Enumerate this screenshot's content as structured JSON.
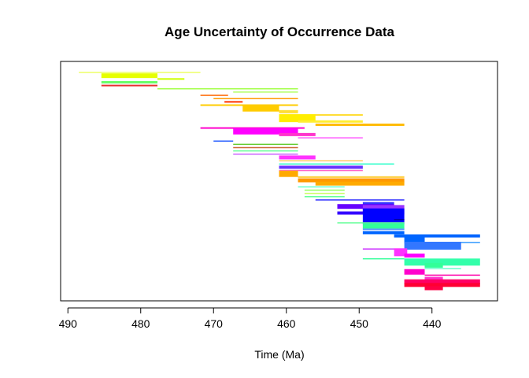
{
  "chart_data": {
    "type": "range-bar",
    "title": "Age Uncertainty of Occurrence Data",
    "xlabel": "Time (Ma)",
    "ylabel": "",
    "xlim": [
      491,
      431
    ],
    "x_reversed": true,
    "xticks": [
      490,
      480,
      470,
      460,
      450,
      440
    ],
    "xtick_labels": [
      "490",
      "480",
      "470",
      "460",
      "450",
      "440"
    ],
    "colors": [
      "#e6ff00",
      "#ccff33",
      "#a6ff4d",
      "#66ff66",
      "#33ff99",
      "#00ffcc",
      "#33ccff",
      "#3399ff",
      "#0066ff",
      "#0033ff",
      "#0000ff",
      "#3300ff",
      "#6600ff",
      "#9933ff",
      "#cc33ff",
      "#ff00ff",
      "#ff33cc",
      "#ff0099",
      "#ff0066",
      "#ff0033",
      "#ff9900",
      "#ffcc00",
      "#ffdd33",
      "#ff6600",
      "#ff3300",
      "#ff7700"
    ],
    "ranges": [
      {
        "start": 488.5,
        "end": 471.8,
        "color": "#eeff66",
        "width": 1.5
      },
      {
        "start": 485.4,
        "end": 477.7,
        "color": "#e6ff00",
        "width": 6
      },
      {
        "start": 477.7,
        "end": 474.0,
        "color": "#ccff00",
        "width": 2
      },
      {
        "start": 485.4,
        "end": 477.7,
        "color": "#66ff66",
        "width": 3
      },
      {
        "start": 485.4,
        "end": 477.7,
        "color": "#e83030",
        "width": 2
      },
      {
        "start": 477.7,
        "end": 458.4,
        "color": "#a6ff4d",
        "width": 1.5
      },
      {
        "start": 467.3,
        "end": 458.4,
        "color": "#b3ff66",
        "width": 1.5
      },
      {
        "start": 471.8,
        "end": 468.0,
        "color": "#ff6600",
        "width": 1.5
      },
      {
        "start": 470.0,
        "end": 458.4,
        "color": "#ff9900",
        "width": 1.5
      },
      {
        "start": 468.5,
        "end": 466.0,
        "color": "#ff3300",
        "width": 2
      },
      {
        "start": 471.8,
        "end": 458.4,
        "color": "#ffcc00",
        "width": 2
      },
      {
        "start": 466.0,
        "end": 461.0,
        "color": "#ffcc00",
        "width": 8
      },
      {
        "start": 461.0,
        "end": 458.4,
        "color": "#ffdd33",
        "width": 4
      },
      {
        "start": 461.0,
        "end": 449.5,
        "color": "#ffdd33",
        "width": 2
      },
      {
        "start": 461.0,
        "end": 456.0,
        "color": "#ffee00",
        "width": 10
      },
      {
        "start": 458.4,
        "end": 449.5,
        "color": "#ffee33",
        "width": 3
      },
      {
        "start": 456.0,
        "end": 443.8,
        "color": "#ffbb00",
        "width": 3
      },
      {
        "start": 471.8,
        "end": 457.5,
        "color": "#ff00cc",
        "width": 2
      },
      {
        "start": 467.3,
        "end": 458.4,
        "color": "#ff00ff",
        "width": 8
      },
      {
        "start": 461.0,
        "end": 456.0,
        "color": "#ff33cc",
        "width": 4
      },
      {
        "start": 458.4,
        "end": 449.5,
        "color": "#ff66ff",
        "width": 1.5
      },
      {
        "start": 470.0,
        "end": 467.3,
        "color": "#3366ff",
        "width": 1.5
      },
      {
        "start": 467.3,
        "end": 458.4,
        "color": "#66cc33",
        "width": 1.5
      },
      {
        "start": 467.3,
        "end": 458.4,
        "color": "#cc6633",
        "width": 1.5
      },
      {
        "start": 467.3,
        "end": 458.4,
        "color": "#66ff99",
        "width": 1.5
      },
      {
        "start": 467.3,
        "end": 458.4,
        "color": "#cc66ff",
        "width": 1.5
      },
      {
        "start": 461.0,
        "end": 456.0,
        "color": "#ff33ff",
        "width": 5
      },
      {
        "start": 461.0,
        "end": 449.5,
        "color": "#ffcc66",
        "width": 1.5
      },
      {
        "start": 461.0,
        "end": 445.2,
        "color": "#33ffcc",
        "width": 1.5
      },
      {
        "start": 461.0,
        "end": 449.5,
        "color": "#6633ff",
        "width": 4
      },
      {
        "start": 461.0,
        "end": 449.5,
        "color": "#ff66cc",
        "width": 1.5
      },
      {
        "start": 461.0,
        "end": 458.4,
        "color": "#ffaa00",
        "width": 8
      },
      {
        "start": 458.4,
        "end": 443.8,
        "color": "#ffcc33",
        "width": 2
      },
      {
        "start": 458.4,
        "end": 443.8,
        "color": "#ff9900",
        "width": 5
      },
      {
        "start": 456.0,
        "end": 443.8,
        "color": "#ffaa00",
        "width": 5
      },
      {
        "start": 458.4,
        "end": 452.0,
        "color": "#66ffcc",
        "width": 1.5
      },
      {
        "start": 457.5,
        "end": 452.0,
        "color": "#99ff66",
        "width": 1.5
      },
      {
        "start": 457.5,
        "end": 452.0,
        "color": "#ccff66",
        "width": 1.5
      },
      {
        "start": 457.5,
        "end": 452.0,
        "color": "#66ff99",
        "width": 1.5
      },
      {
        "start": 456.0,
        "end": 443.8,
        "color": "#3333ff",
        "width": 1.5
      },
      {
        "start": 449.5,
        "end": 445.2,
        "color": "#3333ff",
        "width": 3
      },
      {
        "start": 453.0,
        "end": 445.2,
        "color": "#6600ff",
        "width": 6
      },
      {
        "start": 449.5,
        "end": 443.8,
        "color": "#9933ff",
        "width": 12
      },
      {
        "start": 453.0,
        "end": 445.2,
        "color": "#3300ff",
        "width": 4
      },
      {
        "start": 449.5,
        "end": 443.8,
        "color": "#0000ff",
        "width": 20
      },
      {
        "start": 445.2,
        "end": 443.8,
        "color": "#000099",
        "width": 1.5
      },
      {
        "start": 453.0,
        "end": 443.8,
        "color": "#66ff99",
        "width": 1.5
      },
      {
        "start": 449.5,
        "end": 443.8,
        "color": "#33ff99",
        "width": 7
      },
      {
        "start": 449.5,
        "end": 443.8,
        "color": "#6699ff",
        "width": 2
      },
      {
        "start": 449.5,
        "end": 443.8,
        "color": "#0066ff",
        "width": 4
      },
      {
        "start": 445.2,
        "end": 433.4,
        "color": "#0066ff",
        "width": 4
      },
      {
        "start": 443.8,
        "end": 441.0,
        "color": "#0066ff",
        "width": 10
      },
      {
        "start": 441.0,
        "end": 433.4,
        "color": "#3399ff",
        "width": 1.5
      },
      {
        "start": 443.8,
        "end": 436.0,
        "color": "#3377ff",
        "width": 10
      },
      {
        "start": 449.5,
        "end": 443.8,
        "color": "#cc33ff",
        "width": 1.5
      },
      {
        "start": 445.2,
        "end": 443.4,
        "color": "#ff33ff",
        "width": 10
      },
      {
        "start": 443.8,
        "end": 441.0,
        "color": "#ff00ff",
        "width": 5
      },
      {
        "start": 449.5,
        "end": 443.8,
        "color": "#33ff99",
        "width": 1.5
      },
      {
        "start": 443.8,
        "end": 433.4,
        "color": "#33ffaa",
        "width": 9
      },
      {
        "start": 441.0,
        "end": 438.5,
        "color": "#33ff99",
        "width": 6
      },
      {
        "start": 441.0,
        "end": 436.0,
        "color": "#66ffcc",
        "width": 1.5
      },
      {
        "start": 443.8,
        "end": 441.0,
        "color": "#ff00cc",
        "width": 7
      },
      {
        "start": 441.0,
        "end": 433.4,
        "color": "#ff00aa",
        "width": 1.5
      },
      {
        "start": 441.0,
        "end": 438.5,
        "color": "#ff33cc",
        "width": 4
      },
      {
        "start": 443.8,
        "end": 433.4,
        "color": "#ff0066",
        "width": 6
      },
      {
        "start": 443.8,
        "end": 433.4,
        "color": "#ff0033",
        "width": 5
      },
      {
        "start": 441.0,
        "end": 438.5,
        "color": "#ff0044",
        "width": 5
      }
    ]
  }
}
